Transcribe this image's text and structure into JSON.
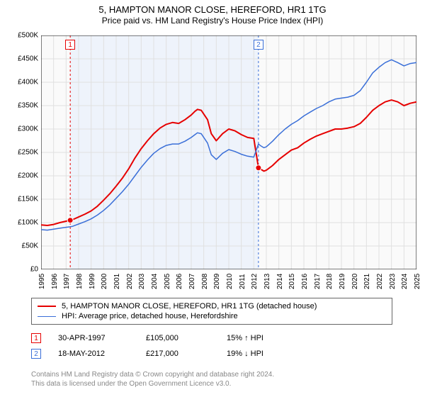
{
  "title": "5, HAMPTON MANOR CLOSE, HEREFORD, HR1 1TG",
  "subtitle": "Price paid vs. HM Land Registry's House Price Index (HPI)",
  "chart": {
    "type": "line",
    "background_color": "#fafafa",
    "grid_color": "#e0e0e0",
    "x": {
      "min": 1995,
      "max": 2025,
      "ticks": [
        1995,
        1996,
        1997,
        1998,
        1999,
        2000,
        2001,
        2002,
        2003,
        2004,
        2005,
        2006,
        2007,
        2008,
        2009,
        2010,
        2011,
        2012,
        2013,
        2014,
        2015,
        2016,
        2017,
        2018,
        2019,
        2020,
        2021,
        2022,
        2023,
        2024,
        2025
      ]
    },
    "y": {
      "min": 0,
      "max": 500000,
      "tick_step": 50000,
      "tick_labels": [
        "£0",
        "£50K",
        "£100K",
        "£150K",
        "£200K",
        "£250K",
        "£300K",
        "£350K",
        "£400K",
        "£450K",
        "£500K"
      ]
    },
    "series": [
      {
        "id": "price_paid",
        "label": "5, HAMPTON MANOR CLOSE, HEREFORD, HR1 1TG (detached house)",
        "color": "#e60000",
        "line_width": 2,
        "points": [
          [
            1995.0,
            95000
          ],
          [
            1995.5,
            94000
          ],
          [
            1996.0,
            96000
          ],
          [
            1996.5,
            100000
          ],
          [
            1997.0,
            103000
          ],
          [
            1997.33,
            105000
          ],
          [
            1997.5,
            106000
          ],
          [
            1998.0,
            112000
          ],
          [
            1998.5,
            118000
          ],
          [
            1999.0,
            125000
          ],
          [
            1999.5,
            135000
          ],
          [
            2000.0,
            148000
          ],
          [
            2000.5,
            162000
          ],
          [
            2001.0,
            178000
          ],
          [
            2001.5,
            195000
          ],
          [
            2002.0,
            215000
          ],
          [
            2002.5,
            238000
          ],
          [
            2003.0,
            258000
          ],
          [
            2003.5,
            275000
          ],
          [
            2004.0,
            290000
          ],
          [
            2004.5,
            302000
          ],
          [
            2005.0,
            310000
          ],
          [
            2005.5,
            314000
          ],
          [
            2006.0,
            312000
          ],
          [
            2006.5,
            320000
          ],
          [
            2007.0,
            330000
          ],
          [
            2007.3,
            338000
          ],
          [
            2007.5,
            342000
          ],
          [
            2007.8,
            340000
          ],
          [
            2008.0,
            332000
          ],
          [
            2008.3,
            320000
          ],
          [
            2008.6,
            290000
          ],
          [
            2009.0,
            275000
          ],
          [
            2009.5,
            290000
          ],
          [
            2010.0,
            300000
          ],
          [
            2010.5,
            296000
          ],
          [
            2011.0,
            288000
          ],
          [
            2011.5,
            282000
          ],
          [
            2012.0,
            280000
          ],
          [
            2012.37,
            217000
          ],
          [
            2012.5,
            215000
          ],
          [
            2012.8,
            210000
          ],
          [
            2013.0,
            212000
          ],
          [
            2013.5,
            222000
          ],
          [
            2014.0,
            235000
          ],
          [
            2014.5,
            245000
          ],
          [
            2015.0,
            255000
          ],
          [
            2015.5,
            260000
          ],
          [
            2016.0,
            270000
          ],
          [
            2016.5,
            278000
          ],
          [
            2017.0,
            285000
          ],
          [
            2017.5,
            290000
          ],
          [
            2018.0,
            295000
          ],
          [
            2018.5,
            300000
          ],
          [
            2019.0,
            300000
          ],
          [
            2019.5,
            302000
          ],
          [
            2020.0,
            305000
          ],
          [
            2020.5,
            312000
          ],
          [
            2021.0,
            325000
          ],
          [
            2021.5,
            340000
          ],
          [
            2022.0,
            350000
          ],
          [
            2022.5,
            358000
          ],
          [
            2023.0,
            362000
          ],
          [
            2023.5,
            358000
          ],
          [
            2024.0,
            350000
          ],
          [
            2024.5,
            355000
          ],
          [
            2025.0,
            358000
          ]
        ]
      },
      {
        "id": "hpi",
        "label": "HPI: Average price, detached house, Herefordshire",
        "color": "#3a6fd8",
        "line_width": 1.5,
        "points": [
          [
            1995.0,
            85000
          ],
          [
            1995.5,
            84000
          ],
          [
            1996.0,
            86000
          ],
          [
            1996.5,
            88000
          ],
          [
            1997.0,
            90000
          ],
          [
            1997.33,
            91000
          ],
          [
            1997.5,
            92000
          ],
          [
            1998.0,
            97000
          ],
          [
            1998.5,
            102000
          ],
          [
            1999.0,
            108000
          ],
          [
            1999.5,
            116000
          ],
          [
            2000.0,
            126000
          ],
          [
            2000.5,
            138000
          ],
          [
            2001.0,
            152000
          ],
          [
            2001.5,
            166000
          ],
          [
            2002.0,
            182000
          ],
          [
            2002.5,
            200000
          ],
          [
            2003.0,
            218000
          ],
          [
            2003.5,
            234000
          ],
          [
            2004.0,
            248000
          ],
          [
            2004.5,
            258000
          ],
          [
            2005.0,
            265000
          ],
          [
            2005.5,
            268000
          ],
          [
            2006.0,
            268000
          ],
          [
            2006.5,
            274000
          ],
          [
            2007.0,
            282000
          ],
          [
            2007.3,
            288000
          ],
          [
            2007.5,
            292000
          ],
          [
            2007.8,
            290000
          ],
          [
            2008.0,
            282000
          ],
          [
            2008.3,
            270000
          ],
          [
            2008.6,
            245000
          ],
          [
            2009.0,
            235000
          ],
          [
            2009.5,
            248000
          ],
          [
            2010.0,
            256000
          ],
          [
            2010.5,
            252000
          ],
          [
            2011.0,
            246000
          ],
          [
            2011.5,
            242000
          ],
          [
            2012.0,
            240000
          ],
          [
            2012.37,
            268000
          ],
          [
            2012.5,
            265000
          ],
          [
            2012.8,
            260000
          ],
          [
            2013.0,
            262000
          ],
          [
            2013.5,
            274000
          ],
          [
            2014.0,
            288000
          ],
          [
            2014.5,
            300000
          ],
          [
            2015.0,
            310000
          ],
          [
            2015.5,
            318000
          ],
          [
            2016.0,
            328000
          ],
          [
            2016.5,
            336000
          ],
          [
            2017.0,
            344000
          ],
          [
            2017.5,
            350000
          ],
          [
            2018.0,
            358000
          ],
          [
            2018.5,
            364000
          ],
          [
            2019.0,
            366000
          ],
          [
            2019.5,
            368000
          ],
          [
            2020.0,
            372000
          ],
          [
            2020.5,
            382000
          ],
          [
            2021.0,
            400000
          ],
          [
            2021.5,
            420000
          ],
          [
            2022.0,
            432000
          ],
          [
            2022.5,
            442000
          ],
          [
            2023.0,
            448000
          ],
          [
            2023.5,
            442000
          ],
          [
            2024.0,
            435000
          ],
          [
            2024.5,
            440000
          ],
          [
            2025.0,
            442000
          ]
        ]
      }
    ],
    "markers": [
      {
        "n": "1",
        "year": 1997.33,
        "color": "#e60000"
      },
      {
        "n": "2",
        "year": 2012.37,
        "color": "#3a6fd8"
      }
    ],
    "shaded_region": {
      "from_year": 1997.33,
      "to_year": 2012.37,
      "fill": "#eef3fb"
    },
    "sale_dots": [
      {
        "year": 1997.33,
        "value": 105000,
        "color": "#e60000"
      },
      {
        "year": 2012.37,
        "value": 217000,
        "color": "#e60000"
      }
    ]
  },
  "legend": {
    "items": [
      {
        "series_id": "price_paid"
      },
      {
        "series_id": "hpi"
      }
    ]
  },
  "sales": [
    {
      "n": "1",
      "marker_color": "#e60000",
      "date": "30-APR-1997",
      "price": "£105,000",
      "delta": "15% ↑ HPI"
    },
    {
      "n": "2",
      "marker_color": "#3a6fd8",
      "date": "18-MAY-2012",
      "price": "£217,000",
      "delta": "19% ↓ HPI"
    }
  ],
  "attribution": {
    "line1": "Contains HM Land Registry data © Crown copyright and database right 2024.",
    "line2": "This data is licensed under the Open Government Licence v3.0."
  }
}
